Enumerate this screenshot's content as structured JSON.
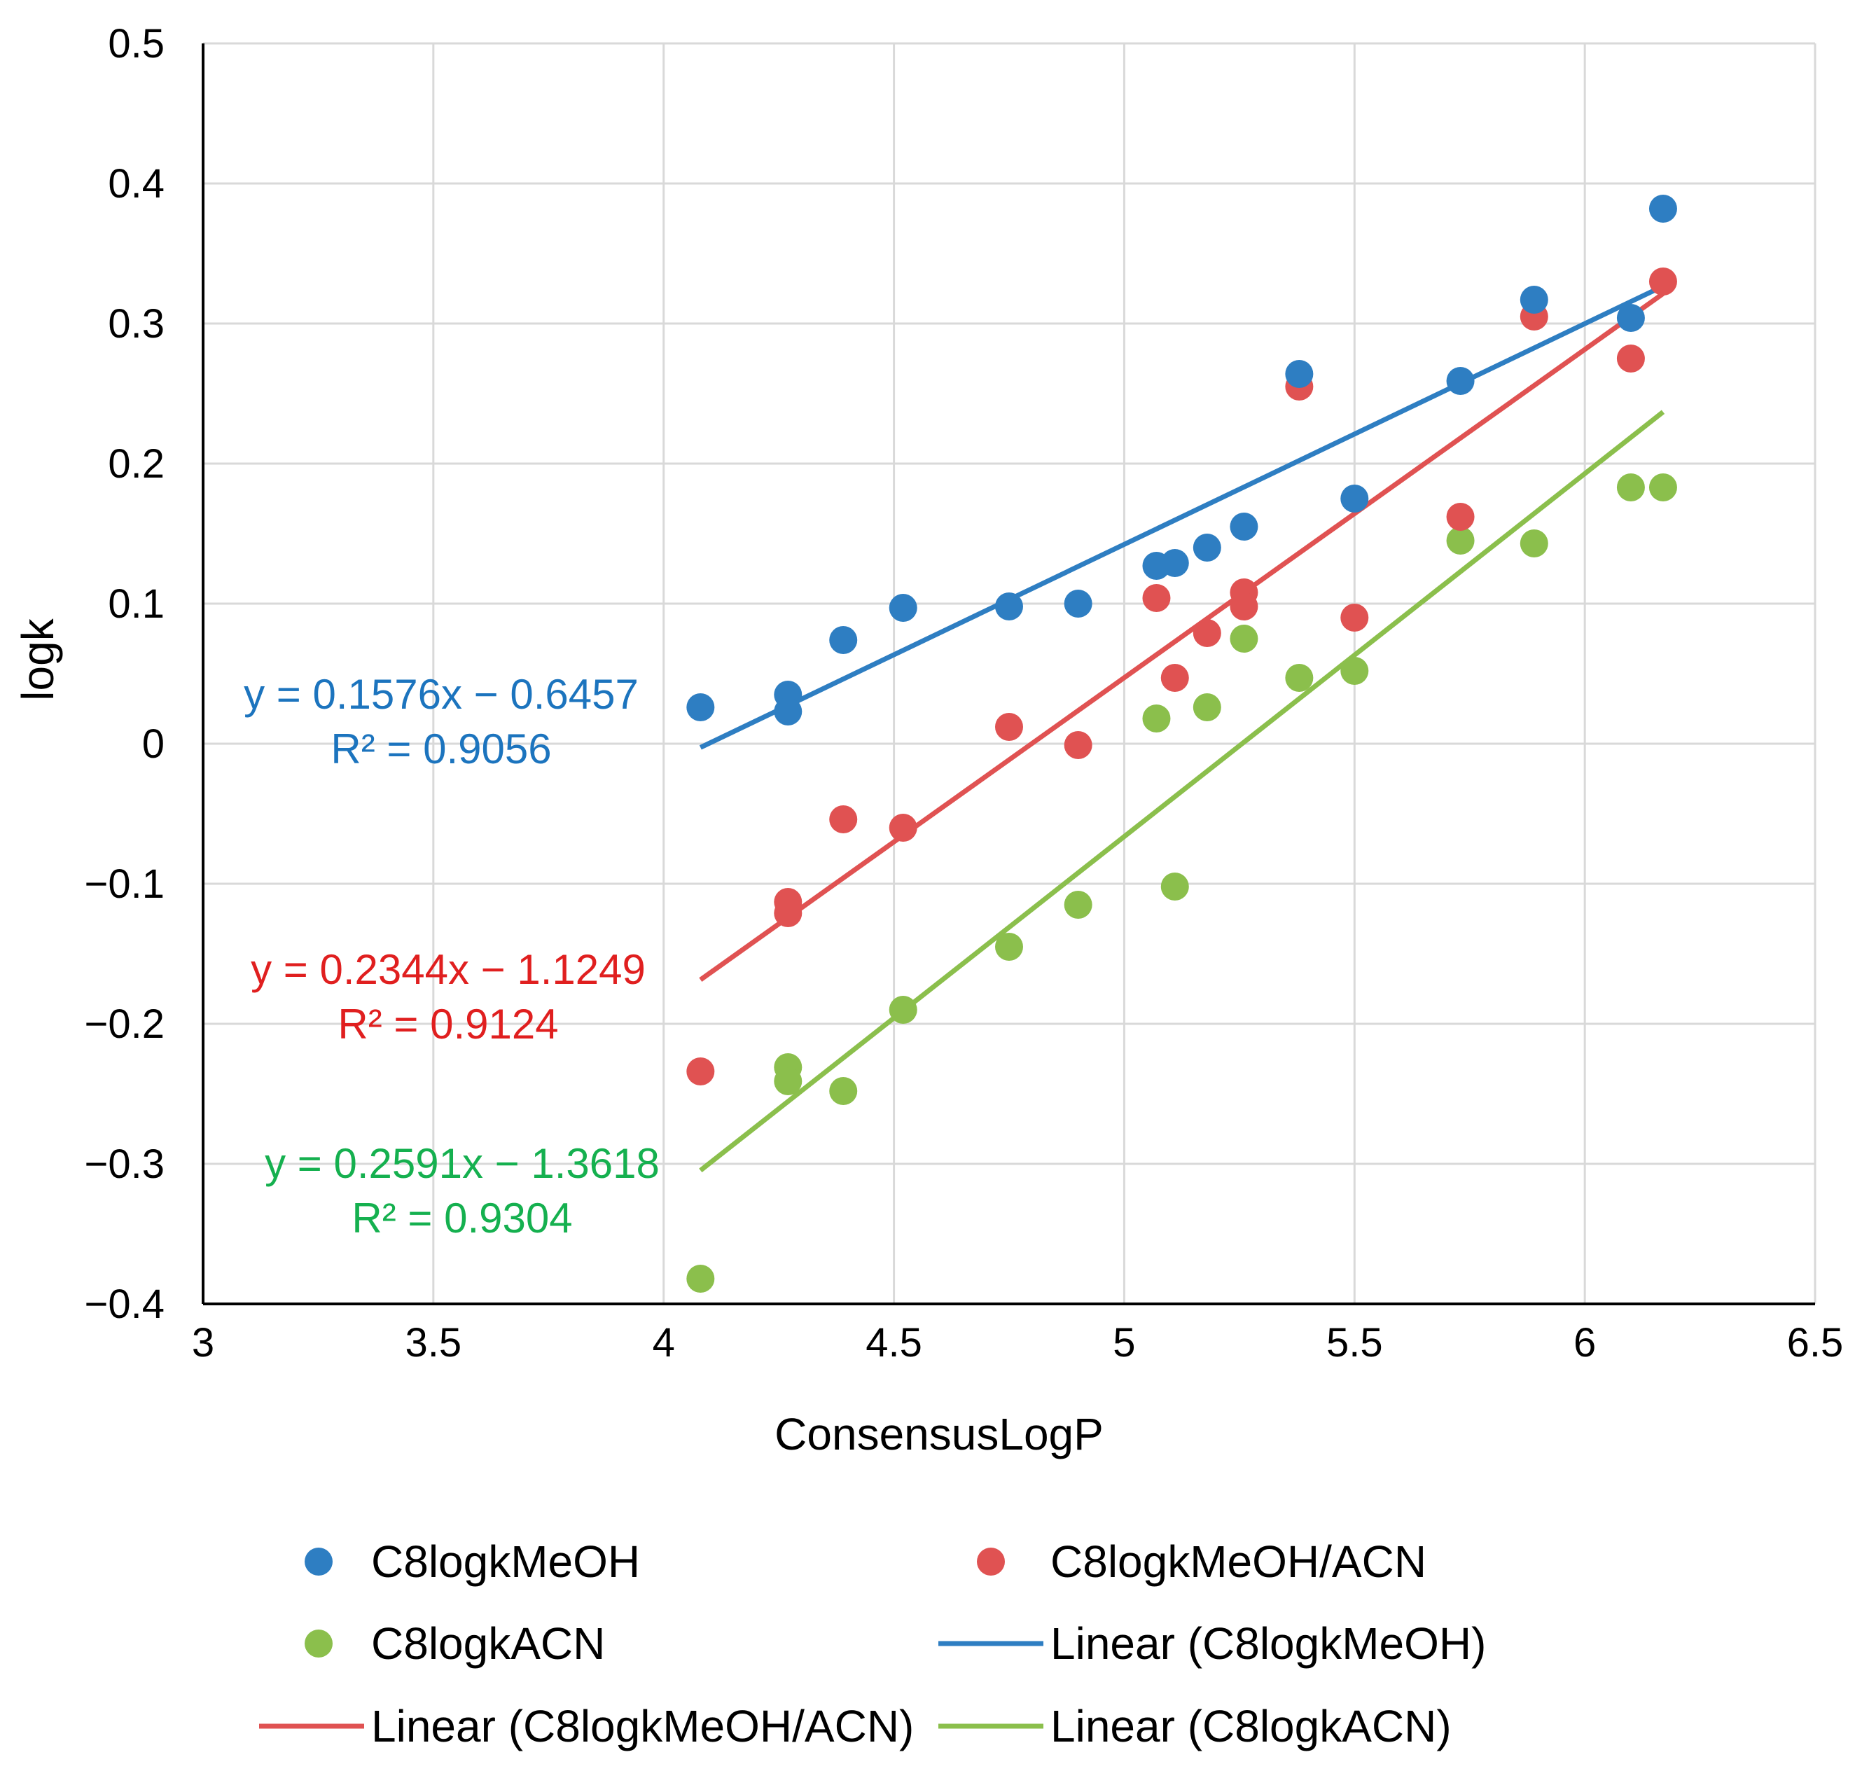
{
  "chart_data": {
    "type": "scatter",
    "title": "",
    "xlabel": "ConsensusLogP",
    "ylabel": "logk",
    "xlim": [
      3,
      6.5
    ],
    "ylim": [
      -0.4,
      0.5
    ],
    "xticks": [
      3,
      3.5,
      4,
      4.5,
      5,
      5.5,
      6,
      6.5
    ],
    "xtick_labels": [
      "3",
      "3.5",
      "4",
      "4.5",
      "5",
      "5.5",
      "6",
      "6.5"
    ],
    "yticks": [
      0.5,
      0.4,
      0.3,
      0.2,
      0.1,
      0,
      -0.1,
      -0.2,
      -0.3,
      -0.4
    ],
    "ytick_labels": [
      "0.5",
      "0.4",
      "0.3",
      "0.2",
      "0.1",
      "0",
      "−0.1",
      "−0.2",
      "−0.3",
      "−0.4"
    ],
    "grid": true,
    "legend_position": "bottom",
    "series": [
      {
        "name": "C8logkMeOH",
        "color": "#2E7EC2",
        "points": [
          [
            4.08,
            0.026
          ],
          [
            4.27,
            0.035
          ],
          [
            4.27,
            0.023
          ],
          [
            4.39,
            0.074
          ],
          [
            4.52,
            0.097
          ],
          [
            4.75,
            0.098
          ],
          [
            4.9,
            0.1
          ],
          [
            5.07,
            0.127
          ],
          [
            5.11,
            0.129
          ],
          [
            5.18,
            0.14
          ],
          [
            5.26,
            0.155
          ],
          [
            5.38,
            0.264
          ],
          [
            5.5,
            0.175
          ],
          [
            5.73,
            0.259
          ],
          [
            5.89,
            0.317
          ],
          [
            6.1,
            0.304
          ],
          [
            6.17,
            0.382
          ]
        ],
        "trend": {
          "name": "Linear (C8logkMeOH)",
          "slope": 0.1576,
          "intercept": -0.6457,
          "equation": "y = 0.1576x − 0.6457",
          "r2": "R² = 0.9056",
          "label_color": "#1C74BE"
        }
      },
      {
        "name": "C8logkMeOH/ACN",
        "color": "#E05252",
        "points": [
          [
            4.08,
            -0.234
          ],
          [
            4.27,
            -0.113
          ],
          [
            4.27,
            -0.121
          ],
          [
            4.39,
            -0.054
          ],
          [
            4.52,
            -0.06
          ],
          [
            4.75,
            0.012
          ],
          [
            4.9,
            -0.001
          ],
          [
            5.07,
            0.104
          ],
          [
            5.11,
            0.047
          ],
          [
            5.18,
            0.079
          ],
          [
            5.26,
            0.108
          ],
          [
            5.26,
            0.098
          ],
          [
            5.38,
            0.255
          ],
          [
            5.5,
            0.09
          ],
          [
            5.73,
            0.162
          ],
          [
            5.89,
            0.305
          ],
          [
            6.1,
            0.275
          ],
          [
            6.17,
            0.33
          ]
        ],
        "trend": {
          "name": "Linear (C8logkMeOH/ACN)",
          "slope": 0.2344,
          "intercept": -1.1249,
          "equation": "y = 0.2344x − 1.1249",
          "r2": "R² = 0.9124",
          "label_color": "#E01F1F"
        }
      },
      {
        "name": "C8logkACN",
        "color": "#8BBF4C",
        "points": [
          [
            4.08,
            -0.382
          ],
          [
            4.27,
            -0.231
          ],
          [
            4.27,
            -0.241
          ],
          [
            4.39,
            -0.248
          ],
          [
            4.52,
            -0.19
          ],
          [
            4.75,
            -0.145
          ],
          [
            4.9,
            -0.115
          ],
          [
            5.07,
            0.018
          ],
          [
            5.11,
            -0.102
          ],
          [
            5.18,
            0.026
          ],
          [
            5.26,
            0.075
          ],
          [
            5.38,
            0.047
          ],
          [
            5.5,
            0.052
          ],
          [
            5.73,
            0.145
          ],
          [
            5.89,
            0.143
          ],
          [
            6.1,
            0.183
          ],
          [
            6.17,
            0.183
          ]
        ],
        "trend": {
          "name": "Linear (C8logkACN)",
          "slope": 0.2591,
          "intercept": -1.3618,
          "equation": "y = 0.2591x − 1.3618",
          "r2": "R² = 0.9304",
          "label_color": "#15B04F"
        }
      }
    ],
    "trend_x_range": [
      4.08,
      6.17
    ],
    "legend": [
      {
        "label": "C8logkMeOH",
        "kind": "marker",
        "color": "#2E7EC2"
      },
      {
        "label": "C8logkMeOH/ACN",
        "kind": "marker",
        "color": "#E05252"
      },
      {
        "label": "C8logkACN",
        "kind": "marker",
        "color": "#8BBF4C"
      },
      {
        "label": "Linear (C8logkMeOH)",
        "kind": "line",
        "color": "#2E7EC2"
      },
      {
        "label": "Linear (C8logkMeOH/ACN)",
        "kind": "line",
        "color": "#E05252"
      },
      {
        "label": "Linear (C8logkACN)",
        "kind": "line",
        "color": "#8BBF4C"
      }
    ]
  }
}
